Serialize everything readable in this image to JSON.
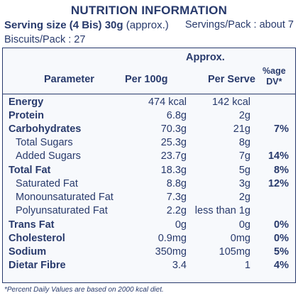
{
  "title": "NUTRITION INFORMATION",
  "serving_size": "Serving size (4 Bis) 30g",
  "serving_approx": "(approx.)",
  "servings_per_pack": "Servings/Pack : about 7",
  "biscuits_per_pack": "Biscuits/Pack : 27",
  "headers": {
    "approx": "Approx.",
    "parameter": "Parameter",
    "per_100g": "Per 100g",
    "per_serve": "Per Serve",
    "dv_line1": "%age",
    "dv_line2": "DV*"
  },
  "rows": [
    {
      "name": "Energy",
      "per100": "474 kcal",
      "serve": "142 kcal",
      "dv": ""
    },
    {
      "name": "Protein",
      "per100": "6.8g",
      "serve": "2g",
      "dv": ""
    },
    {
      "name": "Carbohydrates",
      "per100": "70.3g",
      "serve": "21g",
      "dv": "7%"
    },
    {
      "name": "Total Sugars",
      "per100": "25.3g",
      "serve": "8g",
      "dv": ""
    },
    {
      "name": "Added Sugars",
      "per100": "23.7g",
      "serve": "7g",
      "dv": "14%"
    },
    {
      "name": "Total Fat",
      "per100": "18.3g",
      "serve": "5g",
      "dv": "8%"
    },
    {
      "name": "Saturated Fat",
      "per100": "8.8g",
      "serve": "3g",
      "dv": "12%"
    },
    {
      "name": "Monounsaturated Fat",
      "per100": "7.3g",
      "serve": "2g",
      "dv": ""
    },
    {
      "name": "Polyunsaturated Fat",
      "per100": "2.2g",
      "serve": "less than 1g",
      "dv": ""
    },
    {
      "name": "Trans Fat",
      "per100": "0g",
      "serve": "0g",
      "dv": "0%"
    },
    {
      "name": "Cholesterol",
      "per100": "0.9mg",
      "serve": "0mg",
      "dv": "0%"
    },
    {
      "name": "Sodium",
      "per100": "350mg",
      "serve": "105mg",
      "dv": "5%"
    },
    {
      "name": "Dietar  Fibre",
      "per100": "3.4",
      "serve": "1",
      "dv": "4%"
    }
  ],
  "footnote": "*Percent Daily Values are based on 2000 kcal diet."
}
